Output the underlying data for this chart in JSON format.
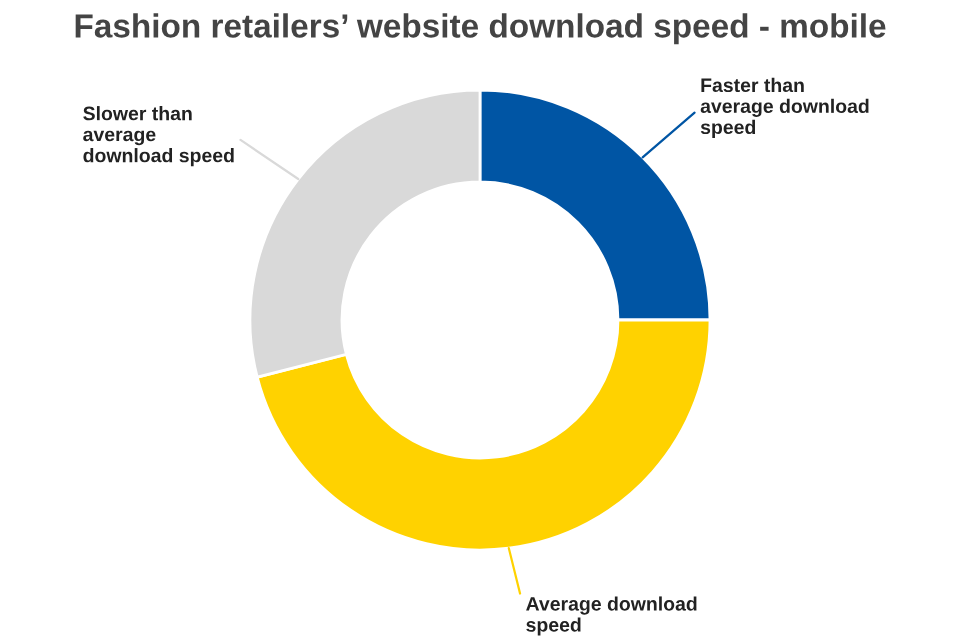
{
  "chart_data": {
    "type": "donut",
    "title": "Fashion retailers’ website download speed - mobile",
    "categories": [
      "Faster than average download speed",
      "Average download speed",
      "Slower than average download speed"
    ],
    "values": [
      25,
      46,
      29
    ],
    "colors": [
      "#0055a4",
      "#ffd200",
      "#d9d9d9"
    ]
  }
}
